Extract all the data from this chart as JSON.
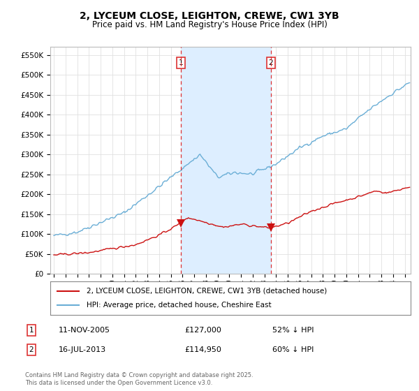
{
  "title": "2, LYCEUM CLOSE, LEIGHTON, CREWE, CW1 3YB",
  "subtitle": "Price paid vs. HM Land Registry's House Price Index (HPI)",
  "title_fontsize": 10,
  "subtitle_fontsize": 8.5,
  "ylabel_ticks": [
    "£0",
    "£50K",
    "£100K",
    "£150K",
    "£200K",
    "£250K",
    "£300K",
    "£350K",
    "£400K",
    "£450K",
    "£500K",
    "£550K"
  ],
  "ytick_values": [
    0,
    50000,
    100000,
    150000,
    200000,
    250000,
    300000,
    350000,
    400000,
    450000,
    500000,
    550000
  ],
  "ylim": [
    0,
    570000
  ],
  "hpi_color": "#6aaed6",
  "price_color": "#cc1111",
  "vline_color": "#dd3333",
  "shade_color": "#ddeeff",
  "grid_color": "#e0e0e0",
  "bg_color": "#ffffff",
  "legend_label_price": "2, LYCEUM CLOSE, LEIGHTON, CREWE, CW1 3YB (detached house)",
  "legend_label_hpi": "HPI: Average price, detached house, Cheshire East",
  "sale1_x": 2005.875,
  "sale1_price": 127000,
  "sale2_x": 2013.542,
  "sale2_price": 114950,
  "footer": "Contains HM Land Registry data © Crown copyright and database right 2025.\nThis data is licensed under the Open Government Licence v3.0.",
  "xmin": 1994.7,
  "xmax": 2025.5,
  "xtick_years": [
    1995,
    1996,
    1997,
    1998,
    1999,
    2000,
    2001,
    2002,
    2003,
    2004,
    2005,
    2006,
    2007,
    2008,
    2009,
    2010,
    2011,
    2012,
    2013,
    2014,
    2015,
    2016,
    2017,
    2018,
    2019,
    2020,
    2021,
    2022,
    2023,
    2024,
    2025
  ]
}
